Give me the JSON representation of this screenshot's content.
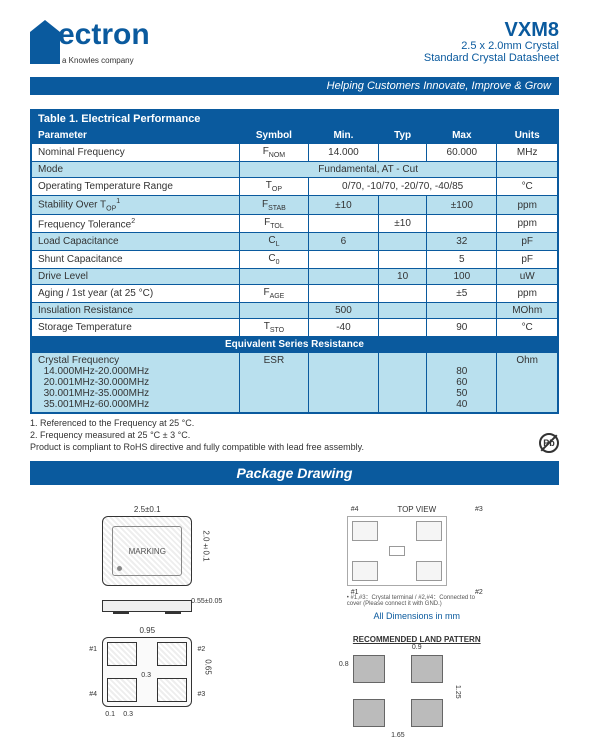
{
  "logo": {
    "brand": "ectron",
    "sub": "a Knowles company"
  },
  "product": {
    "code": "VXM8",
    "line1": "2.5 x 2.0mm Crystal",
    "line2": "Standard Crystal Datasheet"
  },
  "banner": "Helping Customers Innovate, Improve & Grow",
  "table": {
    "title": "Table 1. Electrical Performance",
    "headers": [
      "Parameter",
      "Symbol",
      "Min.",
      "Typ",
      "Max",
      "Units"
    ],
    "rows": [
      {
        "shade": false,
        "cells": [
          "Nominal Frequency",
          "F",
          "14.000",
          "",
          "60.000",
          "MHz"
        ],
        "sub": "NOM"
      },
      {
        "shade": true,
        "cells": [
          "Mode",
          "",
          "",
          "",
          "",
          ""
        ],
        "mode": "Fundamental, AT - Cut"
      },
      {
        "shade": false,
        "cells": [
          "Operating Temperature Range",
          "T",
          "",
          "",
          "",
          "°C"
        ],
        "sub": "OP",
        "span": "0/70, -10/70, -20/70, -40/85"
      },
      {
        "shade": true,
        "cells": [
          "Stability Over T",
          "F",
          "±10",
          "",
          "±100",
          "ppm"
        ],
        "sub": "STAB",
        "psub": "OP",
        "psup": "1"
      },
      {
        "shade": false,
        "cells": [
          "Frequency Tolerance",
          "F",
          "",
          "±10",
          "",
          "ppm"
        ],
        "sub": "TOL",
        "psup": "2"
      },
      {
        "shade": true,
        "cells": [
          "Load Capacitance",
          "C",
          "6",
          "",
          "32",
          "pF"
        ],
        "sub": "L"
      },
      {
        "shade": false,
        "cells": [
          "Shunt Capacitance",
          "C",
          "",
          "",
          "5",
          "pF"
        ],
        "sub": "0"
      },
      {
        "shade": true,
        "cells": [
          "Drive Level",
          "",
          "",
          "10",
          "100",
          "uW"
        ]
      },
      {
        "shade": false,
        "cells": [
          "Aging / 1st year (at 25 °C)",
          "F",
          "",
          "",
          "±5",
          "ppm"
        ],
        "sub": "AGE"
      },
      {
        "shade": true,
        "cells": [
          "Insulation Resistance",
          "",
          "500",
          "",
          "",
          "MOhm"
        ]
      },
      {
        "shade": false,
        "cells": [
          "Storage Temperature",
          "T",
          "-40",
          "",
          "90",
          "°C"
        ],
        "sub": "STO"
      }
    ],
    "sub_header": "Equivalent Series Resistance",
    "esr": {
      "label": "Crystal Frequency",
      "lines": [
        "14.000MHz-20.000MHz",
        "20.001MHz-30.000MHz",
        "30.001MHz-35.000MHz",
        "35.001MHz-60.000MHz"
      ],
      "symbol": "ESR",
      "max": [
        "80",
        "60",
        "50",
        "40"
      ],
      "units": "Ohm"
    }
  },
  "notes": {
    "n1": "1. Referenced to the Frequency at 25 °C.",
    "n2": "2. Frequency measured at 25 °C ± 3 °C.",
    "n3": "Product is compliant to RoHS directive and fully compatible with lead free assembly.",
    "pb": "Pb"
  },
  "section": "Package Drawing",
  "drawings": {
    "dim_w": "2.5±0.1",
    "dim_h": "2.0±0.1",
    "dim_t": "0.55±0.05",
    "marking": "MARKING",
    "bottom": {
      "w": "0.95",
      "h": "0.65",
      "gap": "0.3",
      "edge": "0.1",
      "n": "0.3"
    },
    "pins": {
      "p1": "#1",
      "p2": "#2",
      "p3": "#3",
      "p4": "#4"
    },
    "topview": "TOP VIEW",
    "tv_note": "• #1,#3：Crystal terminal / #2,#4：Connected to cover (Please connect it with GND.)",
    "alldim": "All Dimensions in mm",
    "land_title": "RECOMMENDED LAND PATTERN",
    "land": {
      "w": "0.9",
      "h": "0.8",
      "tw": "1.65",
      "th": "1.25"
    }
  }
}
